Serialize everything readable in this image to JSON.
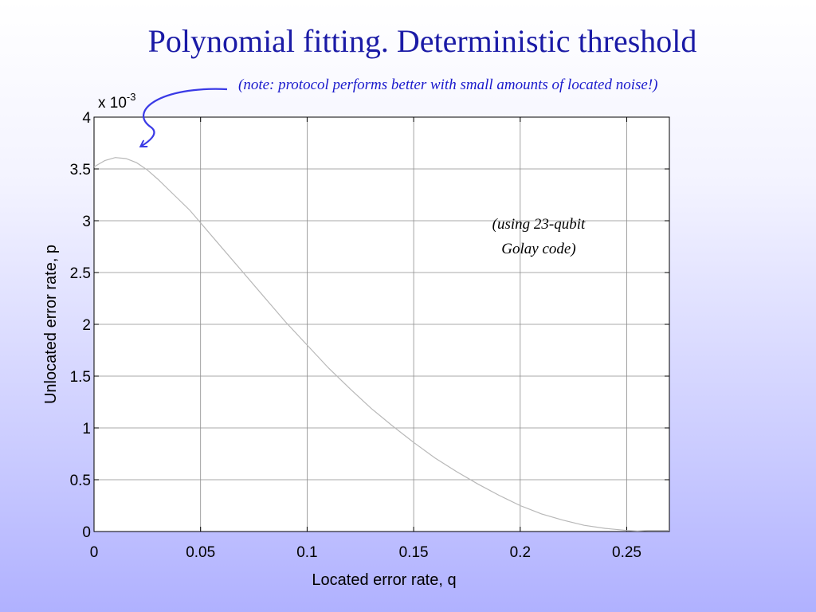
{
  "slide": {
    "title": "Polynomial fitting. Deterministic threshold",
    "note": "(note: protocol performs better with small amounts of located noise!)",
    "annotation_lines": [
      "(using 23-qubit",
      "Golay code)"
    ],
    "accent_color": "#1a1aa6",
    "arrow_color": "#3a3ae6"
  },
  "chart_data": {
    "type": "line",
    "title": "",
    "xlabel": "Located error rate, q",
    "ylabel": "Unlocated error rate, p",
    "y_multiplier_label": "x 10",
    "y_multiplier_exponent": "-3",
    "xlim": [
      0,
      0.27
    ],
    "ylim": [
      0,
      4
    ],
    "x_ticks": [
      "0",
      "0.05",
      "0.1",
      "0.15",
      "0.2",
      "0.25"
    ],
    "y_ticks": [
      "0",
      "0.5",
      "1",
      "1.5",
      "2",
      "2.5",
      "3",
      "3.5",
      "4"
    ],
    "grid": true,
    "line_color": "#b8b8b8",
    "series": [
      {
        "x": [
          0,
          0.005,
          0.01,
          0.015,
          0.02,
          0.025,
          0.03,
          0.035,
          0.04,
          0.045,
          0.05,
          0.06,
          0.07,
          0.08,
          0.09,
          0.1,
          0.11,
          0.12,
          0.13,
          0.14,
          0.15,
          0.16,
          0.17,
          0.18,
          0.19,
          0.2,
          0.21,
          0.22,
          0.23,
          0.24,
          0.25,
          0.255,
          0.26,
          0.27
        ],
        "y": [
          3.52,
          3.58,
          3.61,
          3.6,
          3.56,
          3.49,
          3.4,
          3.3,
          3.2,
          3.1,
          2.98,
          2.74,
          2.5,
          2.26,
          2.02,
          1.8,
          1.58,
          1.38,
          1.19,
          1.02,
          0.86,
          0.71,
          0.58,
          0.46,
          0.35,
          0.25,
          0.17,
          0.11,
          0.06,
          0.03,
          0.01,
          0.005,
          0.01,
          0.01
        ]
      }
    ]
  }
}
